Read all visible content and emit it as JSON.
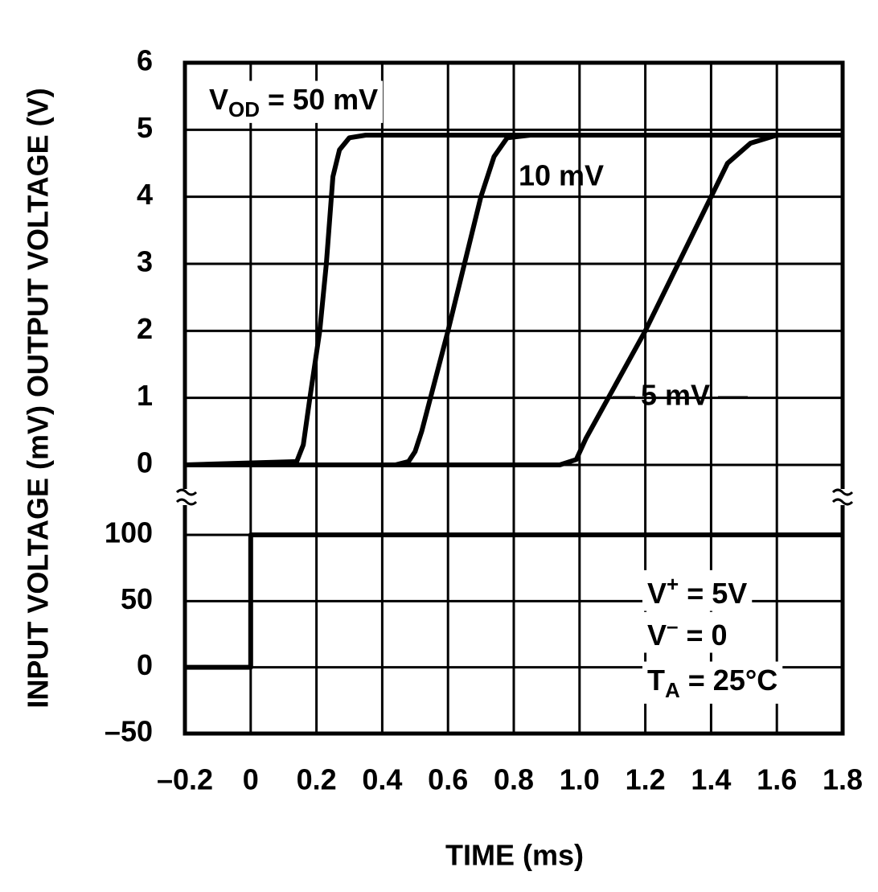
{
  "chart_data": [
    {
      "type": "line",
      "ylabel": "INPUT VOLTAGE (mV) OUTPUT VOLTAGE (V)",
      "xlim": [
        -0.2,
        1.8
      ],
      "ylim": [
        0,
        6
      ],
      "yticks": [
        0,
        1,
        2,
        3,
        4,
        5,
        6
      ],
      "grid": true,
      "color": "#000000",
      "annotations": [
        {
          "parts": [
            {
              "text": "V"
            },
            {
              "text": "OD",
              "sub": true
            },
            {
              "text": " = 50 mV"
            }
          ]
        }
      ],
      "series": [
        {
          "x": [
            -0.2,
            0.14,
            0.16,
            0.18,
            0.21,
            0.23,
            0.25,
            0.27,
            0.3,
            0.35,
            1.8
          ],
          "values": [
            0,
            0.05,
            0.3,
            1,
            2,
            3,
            4.3,
            4.7,
            4.88,
            4.92,
            4.92
          ]
        },
        {
          "name": "10 mV",
          "x": [
            -0.2,
            0.44,
            0.48,
            0.5,
            0.52,
            0.6,
            0.7,
            0.74,
            0.78,
            0.85,
            1.8
          ],
          "values": [
            0,
            0,
            0.05,
            0.2,
            0.5,
            2,
            4,
            4.6,
            4.88,
            4.92,
            4.92
          ]
        },
        {
          "name": "5 mV",
          "x": [
            -0.2,
            0.94,
            0.99,
            1.02,
            1.2,
            1.4,
            1.45,
            1.52,
            1.6,
            1.8
          ],
          "values": [
            0,
            0,
            0.08,
            0.4,
            2,
            4,
            4.5,
            4.8,
            4.92,
            4.92
          ]
        }
      ]
    },
    {
      "type": "line",
      "xlabel": "TIME (ms)",
      "xlim": [
        -0.2,
        1.8
      ],
      "xticks": [
        {
          "value": -0.2,
          "label": "–0.2"
        },
        0,
        0.2,
        0.4,
        0.6,
        0.8,
        {
          "value": 1,
          "label": "1.0"
        },
        1.2,
        1.4,
        1.6,
        1.8
      ],
      "ylim": [
        -50,
        100
      ],
      "yticks": [
        {
          "value": -50,
          "label": "–50"
        },
        0,
        50,
        100
      ],
      "grid": true,
      "color": "#000000",
      "annotations": [
        {
          "parts": [
            {
              "text": "V"
            },
            {
              "text": "+",
              "sup": true
            },
            {
              "text": " = 5V"
            }
          ]
        },
        {
          "parts": [
            {
              "text": "V"
            },
            {
              "text": "–",
              "sup": true
            },
            {
              "text": " = 0"
            }
          ]
        },
        {
          "parts": [
            {
              "text": "T"
            },
            {
              "text": "A",
              "sub": true
            },
            {
              "text": " = 25°C"
            }
          ]
        }
      ],
      "series": [
        {
          "x": [
            -0.2,
            0,
            0,
            1.8
          ],
          "values": [
            0,
            0,
            100,
            100
          ]
        }
      ]
    }
  ]
}
